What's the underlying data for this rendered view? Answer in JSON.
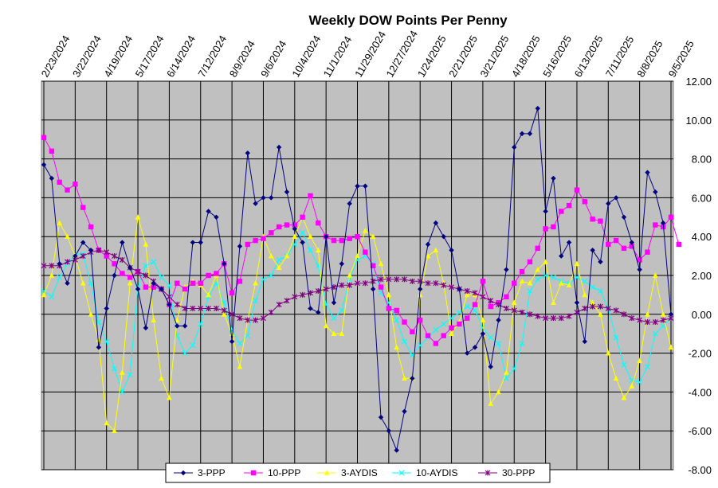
{
  "chart_data": {
    "type": "line",
    "title": "Weekly DOW Points Per Penny",
    "ylim": [
      -8,
      12
    ],
    "ytick_labels": [
      "12.00",
      "10.00",
      "8.00",
      "6.00",
      "4.00",
      "2.00",
      "0.00",
      "-2.00",
      "-4.00",
      "-6.00",
      "-8.00"
    ],
    "x_tick_labels": [
      "2/23/2024",
      "3/22/2024",
      "4/19/2024",
      "5/17/2024",
      "6/14/2024",
      "7/12/2024",
      "8/9/2024",
      "9/6/2024",
      "10/4/2024",
      "11/1/2024",
      "11/29/2024",
      "12/27/2024",
      "1/24/2025",
      "2/21/2025",
      "3/21/2025",
      "4/18/2025",
      "5/16/2025",
      "6/13/2025",
      "7/11/2025",
      "8/8/2025",
      "9/5/2025"
    ],
    "grid": "horizontal and vertical",
    "legend_position": "bottom",
    "series": [
      {
        "name": "3-PPP",
        "color": "#000080",
        "marker": "diamond",
        "values": [
          7.7,
          7.0,
          2.6,
          1.6,
          3.0,
          3.7,
          3.3,
          -1.7,
          0.3,
          2.0,
          3.7,
          2.4,
          1.3,
          -0.7,
          1.6,
          1.3,
          0.5,
          -0.6,
          -0.6,
          3.7,
          3.7,
          5.3,
          5.0,
          2.6,
          -1.4,
          3.5,
          8.3,
          5.7,
          6.0,
          6.0,
          8.6,
          6.3,
          4.4,
          3.7,
          0.3,
          0.1,
          4.0,
          0.6,
          2.6,
          5.7,
          6.6,
          6.6,
          1.3,
          -5.3,
          -6.0,
          -7.0,
          -5.0,
          -3.3,
          1.3,
          3.6,
          4.7,
          4.0,
          3.3,
          1.3,
          -2.0,
          -1.7,
          -1.0,
          -2.7,
          -0.3,
          2.3,
          8.6,
          9.3,
          9.3,
          10.6,
          5.3,
          7.0,
          3.0,
          3.7,
          0.6,
          -1.4,
          3.3,
          2.7,
          5.7,
          6.0,
          5.0,
          3.7,
          2.3,
          7.3,
          6.3,
          4.7,
          0.0
        ]
      },
      {
        "name": "10-PPP",
        "color": "#FF00FF",
        "marker": "square",
        "values": [
          9.1,
          8.4,
          6.8,
          6.4,
          6.7,
          5.5,
          4.5,
          3.3,
          3.0,
          2.6,
          2.1,
          1.9,
          2.2,
          1.4,
          1.4,
          1.3,
          0.5,
          1.6,
          1.3,
          1.6,
          1.6,
          2.0,
          2.1,
          2.6,
          1.1,
          1.7,
          3.6,
          3.8,
          3.9,
          4.2,
          4.5,
          4.6,
          4.6,
          5.0,
          6.1,
          4.7,
          4.0,
          3.8,
          3.8,
          3.9,
          4.0,
          3.2,
          2.5,
          1.4,
          0.3,
          0.2,
          -0.4,
          -0.9,
          -0.3,
          -1.1,
          -1.5,
          -1.1,
          -0.7,
          -0.5,
          -0.2,
          0.5,
          1.7,
          0.4,
          0.6,
          0.9,
          1.6,
          2.2,
          2.7,
          3.4,
          4.4,
          4.5,
          5.3,
          5.6,
          6.4,
          5.8,
          4.9,
          4.8,
          3.6,
          3.8,
          3.4,
          3.5,
          2.8,
          3.2,
          4.6,
          4.5,
          5.0,
          3.6
        ]
      },
      {
        "name": "3-AYDIS",
        "color": "#FFFF00",
        "marker": "triangle",
        "values": [
          1.0,
          2.0,
          4.7,
          4.0,
          3.0,
          1.6,
          0.0,
          -1.3,
          -5.6,
          -6.0,
          -3.0,
          1.6,
          5.0,
          3.6,
          -0.3,
          -3.3,
          -4.3,
          -0.3,
          1.4,
          1.7,
          1.5,
          1.0,
          2.0,
          0.0,
          -1.0,
          -2.7,
          -0.3,
          1.6,
          4.0,
          3.0,
          2.4,
          3.0,
          4.0,
          5.0,
          4.0,
          3.3,
          -0.6,
          -1.0,
          -1.0,
          2.0,
          3.0,
          4.3,
          4.0,
          2.6,
          1.0,
          -1.7,
          -3.3,
          -3.3,
          1.0,
          3.0,
          3.3,
          1.6,
          -1.0,
          -0.4,
          1.0,
          1.0,
          -0.3,
          -4.6,
          -4.0,
          -3.0,
          0.6,
          1.7,
          1.6,
          2.3,
          2.7,
          0.6,
          1.6,
          1.5,
          2.6,
          1.0,
          0.6,
          0.0,
          -2.0,
          -3.3,
          -4.3,
          -3.7,
          -2.4,
          0.0,
          2.0,
          0.0,
          -1.7
        ]
      },
      {
        "name": "10-AYDIS",
        "color": "#00FFFF",
        "marker": "x",
        "values": [
          1.2,
          0.9,
          1.9,
          2.6,
          3.1,
          3.1,
          1.6,
          -0.4,
          -1.4,
          -2.8,
          -4.0,
          -3.1,
          1.4,
          2.5,
          2.7,
          1.9,
          1.5,
          -1.1,
          -2.0,
          -1.6,
          -0.5,
          0.9,
          1.6,
          0.6,
          -0.8,
          -1.5,
          -1.1,
          0.7,
          1.8,
          2.0,
          2.8,
          3.0,
          3.6,
          4.2,
          3.3,
          2.5,
          0.5,
          -0.2,
          0.2,
          1.8,
          2.8,
          3.0,
          2.6,
          1.1,
          0.6,
          -0.3,
          -1.4,
          -2.1,
          -1.6,
          -1.2,
          -0.8,
          -0.5,
          -0.2,
          0.1,
          0.4,
          0.2,
          -0.7,
          -1.2,
          -1.5,
          -3.3,
          -2.8,
          -1.5,
          1.2,
          1.8,
          2.0,
          1.9,
          1.7,
          1.6,
          1.9,
          1.7,
          1.4,
          1.2,
          0.3,
          -1.2,
          -2.6,
          -3.4,
          -3.5,
          -2.7,
          -1.0,
          -0.6,
          -0.2
        ]
      },
      {
        "name": "30-PPP",
        "color": "#800080",
        "marker": "star",
        "values": [
          2.5,
          2.5,
          2.5,
          2.7,
          2.8,
          3.0,
          3.2,
          3.3,
          3.2,
          3.0,
          2.8,
          2.4,
          2.2,
          2.0,
          1.7,
          1.3,
          0.9,
          0.5,
          0.3,
          0.3,
          0.3,
          0.3,
          0.3,
          0.2,
          0.0,
          -0.2,
          -0.3,
          -0.3,
          -0.2,
          0.1,
          0.5,
          0.7,
          0.9,
          1.0,
          1.1,
          1.2,
          1.3,
          1.4,
          1.5,
          1.5,
          1.6,
          1.6,
          1.7,
          1.8,
          1.8,
          1.8,
          1.8,
          1.7,
          1.7,
          1.6,
          1.6,
          1.5,
          1.4,
          1.3,
          1.2,
          1.1,
          0.9,
          0.7,
          0.5,
          0.3,
          0.2,
          0.1,
          0.0,
          -0.1,
          -0.2,
          -0.2,
          -0.2,
          -0.1,
          0.1,
          0.3,
          0.4,
          0.4,
          0.3,
          0.2,
          0.0,
          -0.2,
          -0.3,
          -0.4,
          -0.4,
          -0.3,
          -0.2
        ]
      }
    ]
  }
}
